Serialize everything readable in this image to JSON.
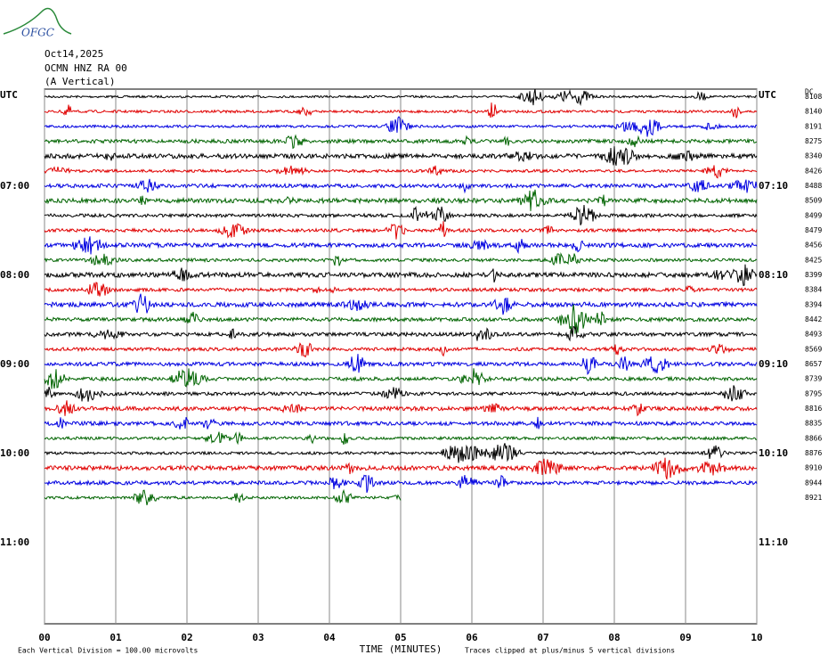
{
  "logo": "OFGC",
  "header": {
    "date": "Oct14,2025",
    "station": "OCMN HNZ RA 00",
    "component": "(A Vertical)"
  },
  "left_labels": [
    "UTC",
    "07:00",
    "08:00",
    "09:00",
    "10:00",
    "11:00"
  ],
  "right_labels": [
    "UTC",
    "07:10",
    "08:10",
    "09:10",
    "10:10",
    "11:10"
  ],
  "dc_label": "DC",
  "dc_values": [
    "8108",
    "8140",
    "8191",
    "8275",
    "8340",
    "8426",
    "8488",
    "8509",
    "8499",
    "8479",
    "8456",
    "8425",
    "8399",
    "8384",
    "8394",
    "8442",
    "8493",
    "8569",
    "8657",
    "8739",
    "8795",
    "8816",
    "8835",
    "8866",
    "8876",
    "8910",
    "8944",
    "8921"
  ],
  "x_ticks": [
    "00",
    "01",
    "02",
    "03",
    "04",
    "05",
    "06",
    "07",
    "08",
    "09",
    "10"
  ],
  "x_label": "TIME (MINUTES)",
  "footer": {
    "scale": "Each Vertical Division =  100.00 microvolts",
    "clip": "Traces clipped at plus/minus 5 vertical divisions"
  }
}
